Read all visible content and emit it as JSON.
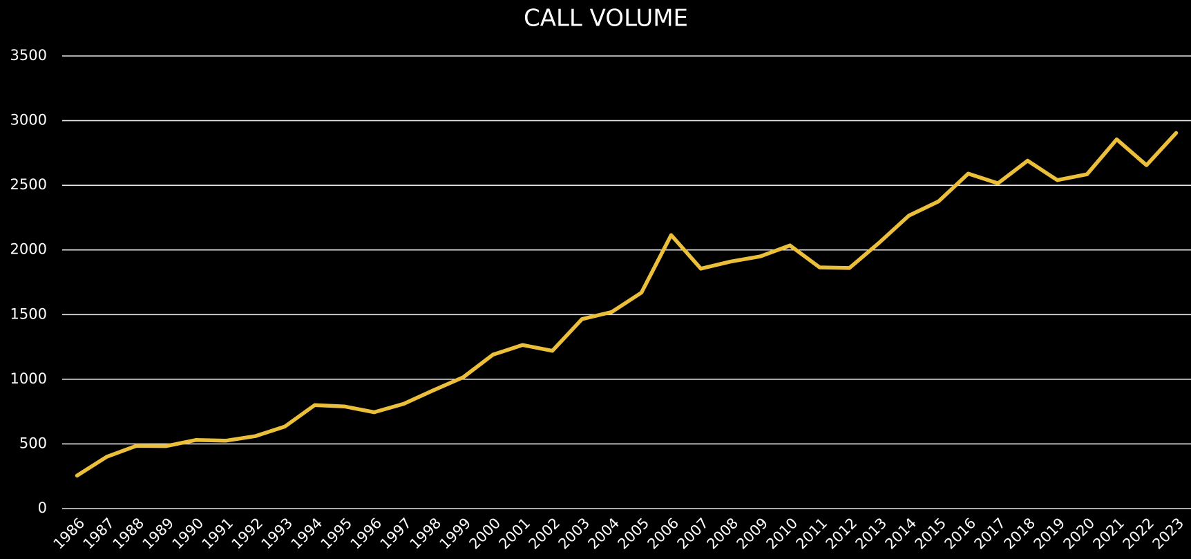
{
  "chart_data": {
    "type": "line",
    "title": "CALL VOLUME",
    "categories": [
      "1986",
      "1987",
      "1988",
      "1989",
      "1990",
      "1991",
      "1992",
      "1993",
      "1994",
      "1995",
      "1996",
      "1997",
      "1998",
      "1999",
      "2000",
      "2001",
      "2002",
      "2003",
      "2004",
      "2005",
      "2006",
      "2007",
      "2008",
      "2009",
      "2010",
      "2011",
      "2012",
      "2013",
      "2014",
      "2015",
      "2016",
      "2017",
      "2018",
      "2019",
      "2020",
      "2021",
      "2022",
      "2023"
    ],
    "series": [
      {
        "name": "Call Volume",
        "color": "#ecbf3a",
        "values": [
          255,
          400,
          485,
          483,
          530,
          525,
          560,
          635,
          800,
          790,
          745,
          810,
          915,
          1015,
          1190,
          1265,
          1220,
          1465,
          1520,
          1670,
          2115,
          1855,
          1910,
          1950,
          2035,
          1865,
          1860,
          2055,
          2265,
          2375,
          2590,
          2515,
          2690,
          2540,
          2585,
          2855,
          2655,
          2905
        ]
      }
    ],
    "ylim": [
      0,
      3500
    ],
    "yticks": [
      0,
      500,
      1000,
      1500,
      2000,
      2500,
      3000,
      3500
    ],
    "grid": true
  }
}
